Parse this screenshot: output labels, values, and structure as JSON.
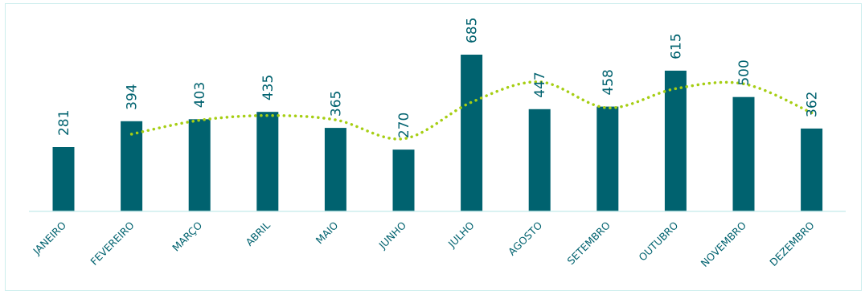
{
  "chart_data": {
    "type": "bar",
    "title": "",
    "xlabel": "",
    "ylabel": "",
    "categories": [
      "JANEIRO",
      "FEVEREIRO",
      "MARÇO",
      "ABRIL",
      "MAIO",
      "JUNHO",
      "JULHO",
      "AGOSTO",
      "SETEMBRO",
      "OUTUBRO",
      "NOVEMBRO",
      "DEZEMBRO"
    ],
    "series": [
      {
        "values": [
          281,
          394,
          403,
          435,
          365,
          270,
          685,
          447,
          458,
          615,
          500,
          362
        ],
        "color": "#00626f"
      }
    ],
    "trendline": {
      "style": "dotted",
      "color": "#a6ce13",
      "values": [
        null,
        337.5,
        398.5,
        419,
        400,
        317.5,
        477.5,
        566,
        452.5,
        536.5,
        557.5,
        431
      ]
    },
    "data_labels": [
      "281",
      "394",
      "403",
      "435",
      "365",
      "270",
      "685",
      "447",
      "458",
      "615",
      "500",
      "362"
    ],
    "ylim": [
      0,
      700
    ],
    "grid": false,
    "legend": "none"
  }
}
